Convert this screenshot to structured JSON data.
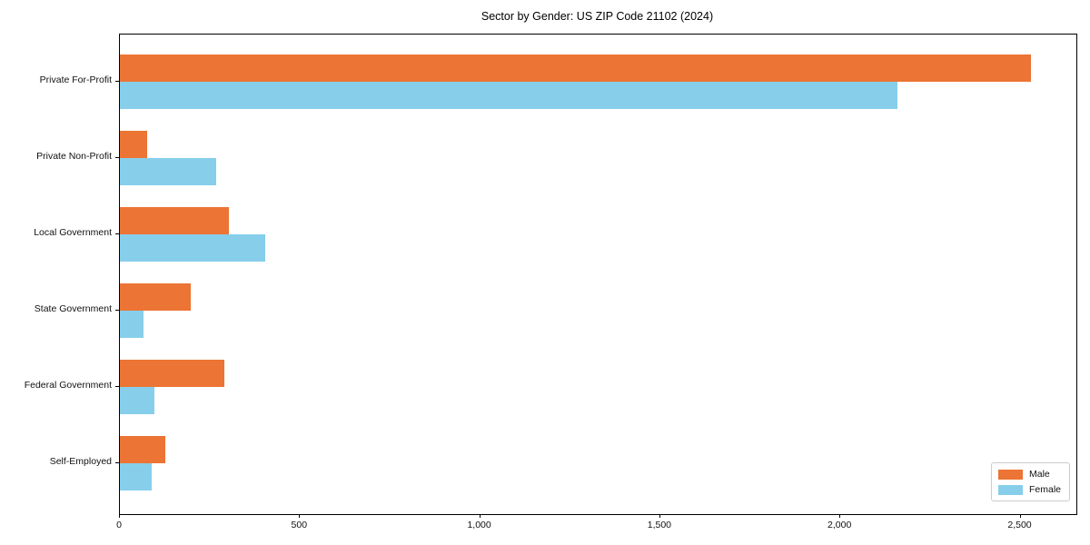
{
  "chart_data": {
    "type": "bar",
    "orientation": "horizontal",
    "title": "Sector by Gender: US ZIP Code 21102 (2024)",
    "categories": [
      "Private For-Profit",
      "Private Non-Profit",
      "Local Government",
      "State Government",
      "Federal Government",
      "Self-Employed"
    ],
    "series": [
      {
        "name": "Male",
        "color": "#EC7434",
        "values": [
          2530,
          76,
          302,
          197,
          290,
          126
        ]
      },
      {
        "name": "Female",
        "color": "#87CEEB",
        "values": [
          2157,
          267,
          403,
          66,
          96,
          87
        ]
      }
    ],
    "xlim": [
      0,
      2655
    ],
    "x_ticks": [
      0,
      500,
      1000,
      1500,
      2000,
      2500
    ],
    "x_tick_labels": [
      "0",
      "500",
      "1,000",
      "1,500",
      "2,000",
      "2,500"
    ],
    "xlabel": "",
    "ylabel": "",
    "grid": false,
    "legend_position": "lower right",
    "frame": true
  }
}
